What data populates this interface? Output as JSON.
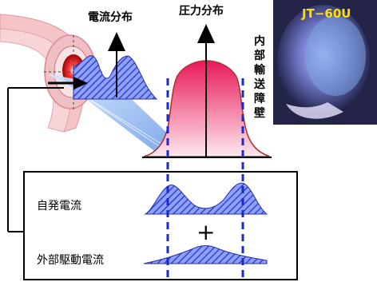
{
  "labels": {
    "current_profile": "電流分布",
    "pressure_profile": "圧力分布",
    "internal_barrier": [
      "内",
      "部",
      "輸",
      "送",
      "障",
      "壁"
    ],
    "bootstrap_current": "自発電流",
    "external_drive_current": "外部駆動電流",
    "plus": "+"
  },
  "photo": {
    "label": "JT−60U"
  },
  "colors": {
    "torus": "#f7d2d5",
    "current_fill": "#5566dd",
    "pressure_fill": "#e8195a",
    "dashed_line": "#1a2acc",
    "photo_bg": "#2a2a55"
  }
}
